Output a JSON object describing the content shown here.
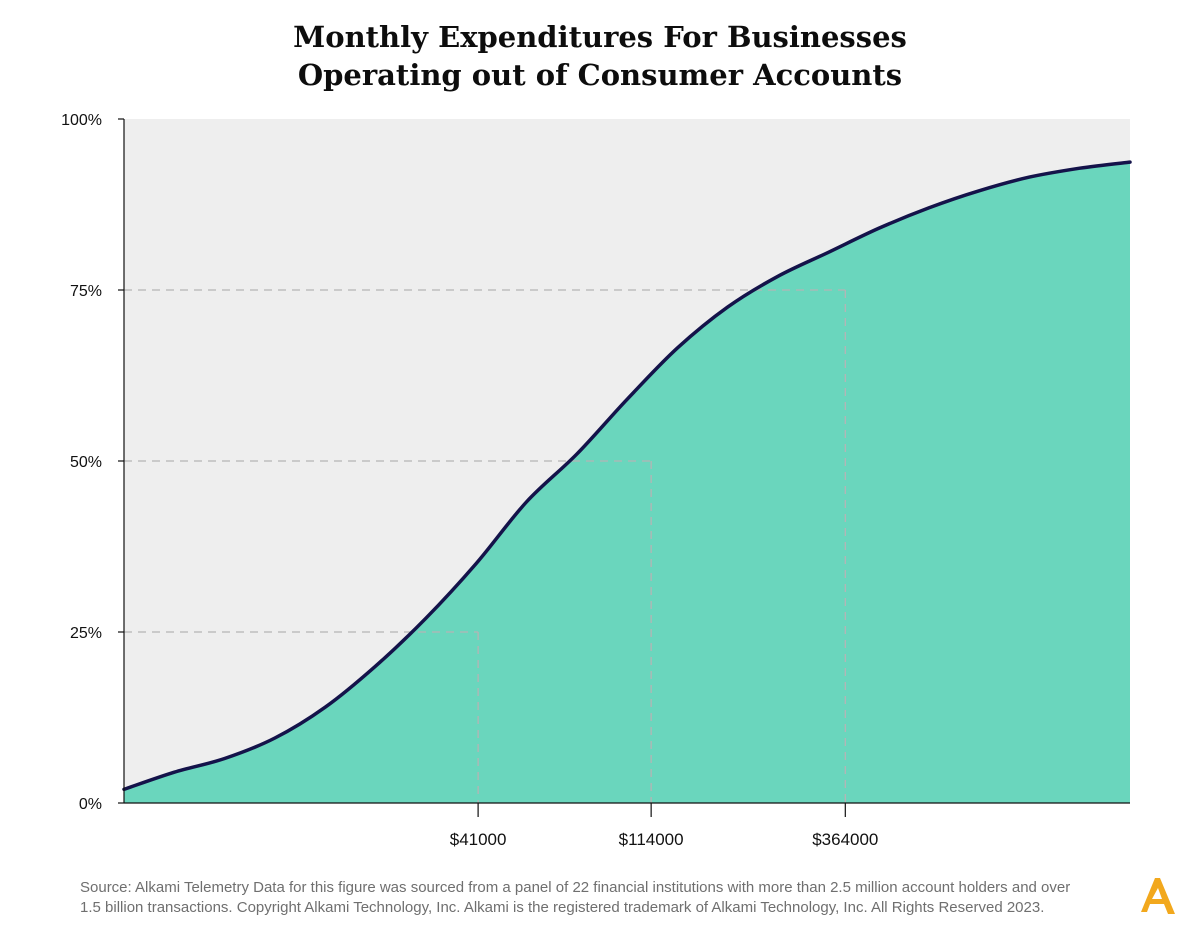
{
  "header": {
    "title_line1": "Monthly Expenditures For Businesses",
    "title_line2": "Operating out of Consumer Accounts"
  },
  "footer": {
    "source_line1": "Source:  Alkami Telemetry Data for this figure was sourced from a panel of 22 financial institutions with more than 2.5 million account holders and over",
    "source_line2": "1.5 billion transactions. Copyright Alkami Technology, Inc. Alkami is the registered trademark of Alkami Technology, Inc. All Rights Reserved 2023.",
    "logo": "A"
  },
  "colors": {
    "fill": "#6ad6bd",
    "line": "#14134a",
    "plot_background": "#eeeeee",
    "gridline": "#b5b5b5",
    "logo": "#f2a81d"
  },
  "chart_data": {
    "type": "area",
    "title": "Monthly Expenditures For Businesses Operating out of Consumer Accounts",
    "xlabel": "",
    "ylabel": "",
    "y_tick_labels": [
      "0%",
      "25%",
      "50%",
      "75%",
      "100%"
    ],
    "ylim": [
      0,
      100
    ],
    "xlim": [
      0,
      100
    ],
    "grid": "dashed reference lines at 25%, 50%, 75%",
    "legend": "none",
    "series": [
      {
        "values_x_percentile_of_axis": [
          0,
          5,
          10,
          15,
          20,
          25,
          30,
          35,
          40,
          45,
          50,
          55,
          60,
          65,
          70,
          75,
          80,
          85,
          90,
          95,
          100
        ],
        "values": [
          2,
          4.5,
          6.5,
          9.5,
          14,
          20,
          27,
          35,
          44,
          51,
          59,
          66.5,
          72.5,
          77,
          80.5,
          84,
          87,
          89.5,
          91.5,
          92.8,
          93.7
        ]
      }
    ],
    "markers": [
      {
        "label": "$41000",
        "x": 35.2,
        "y": 25
      },
      {
        "label": "$114000",
        "x": 52.4,
        "y": 50
      },
      {
        "label": "$364000",
        "x": 71.7,
        "y": 75
      }
    ]
  }
}
